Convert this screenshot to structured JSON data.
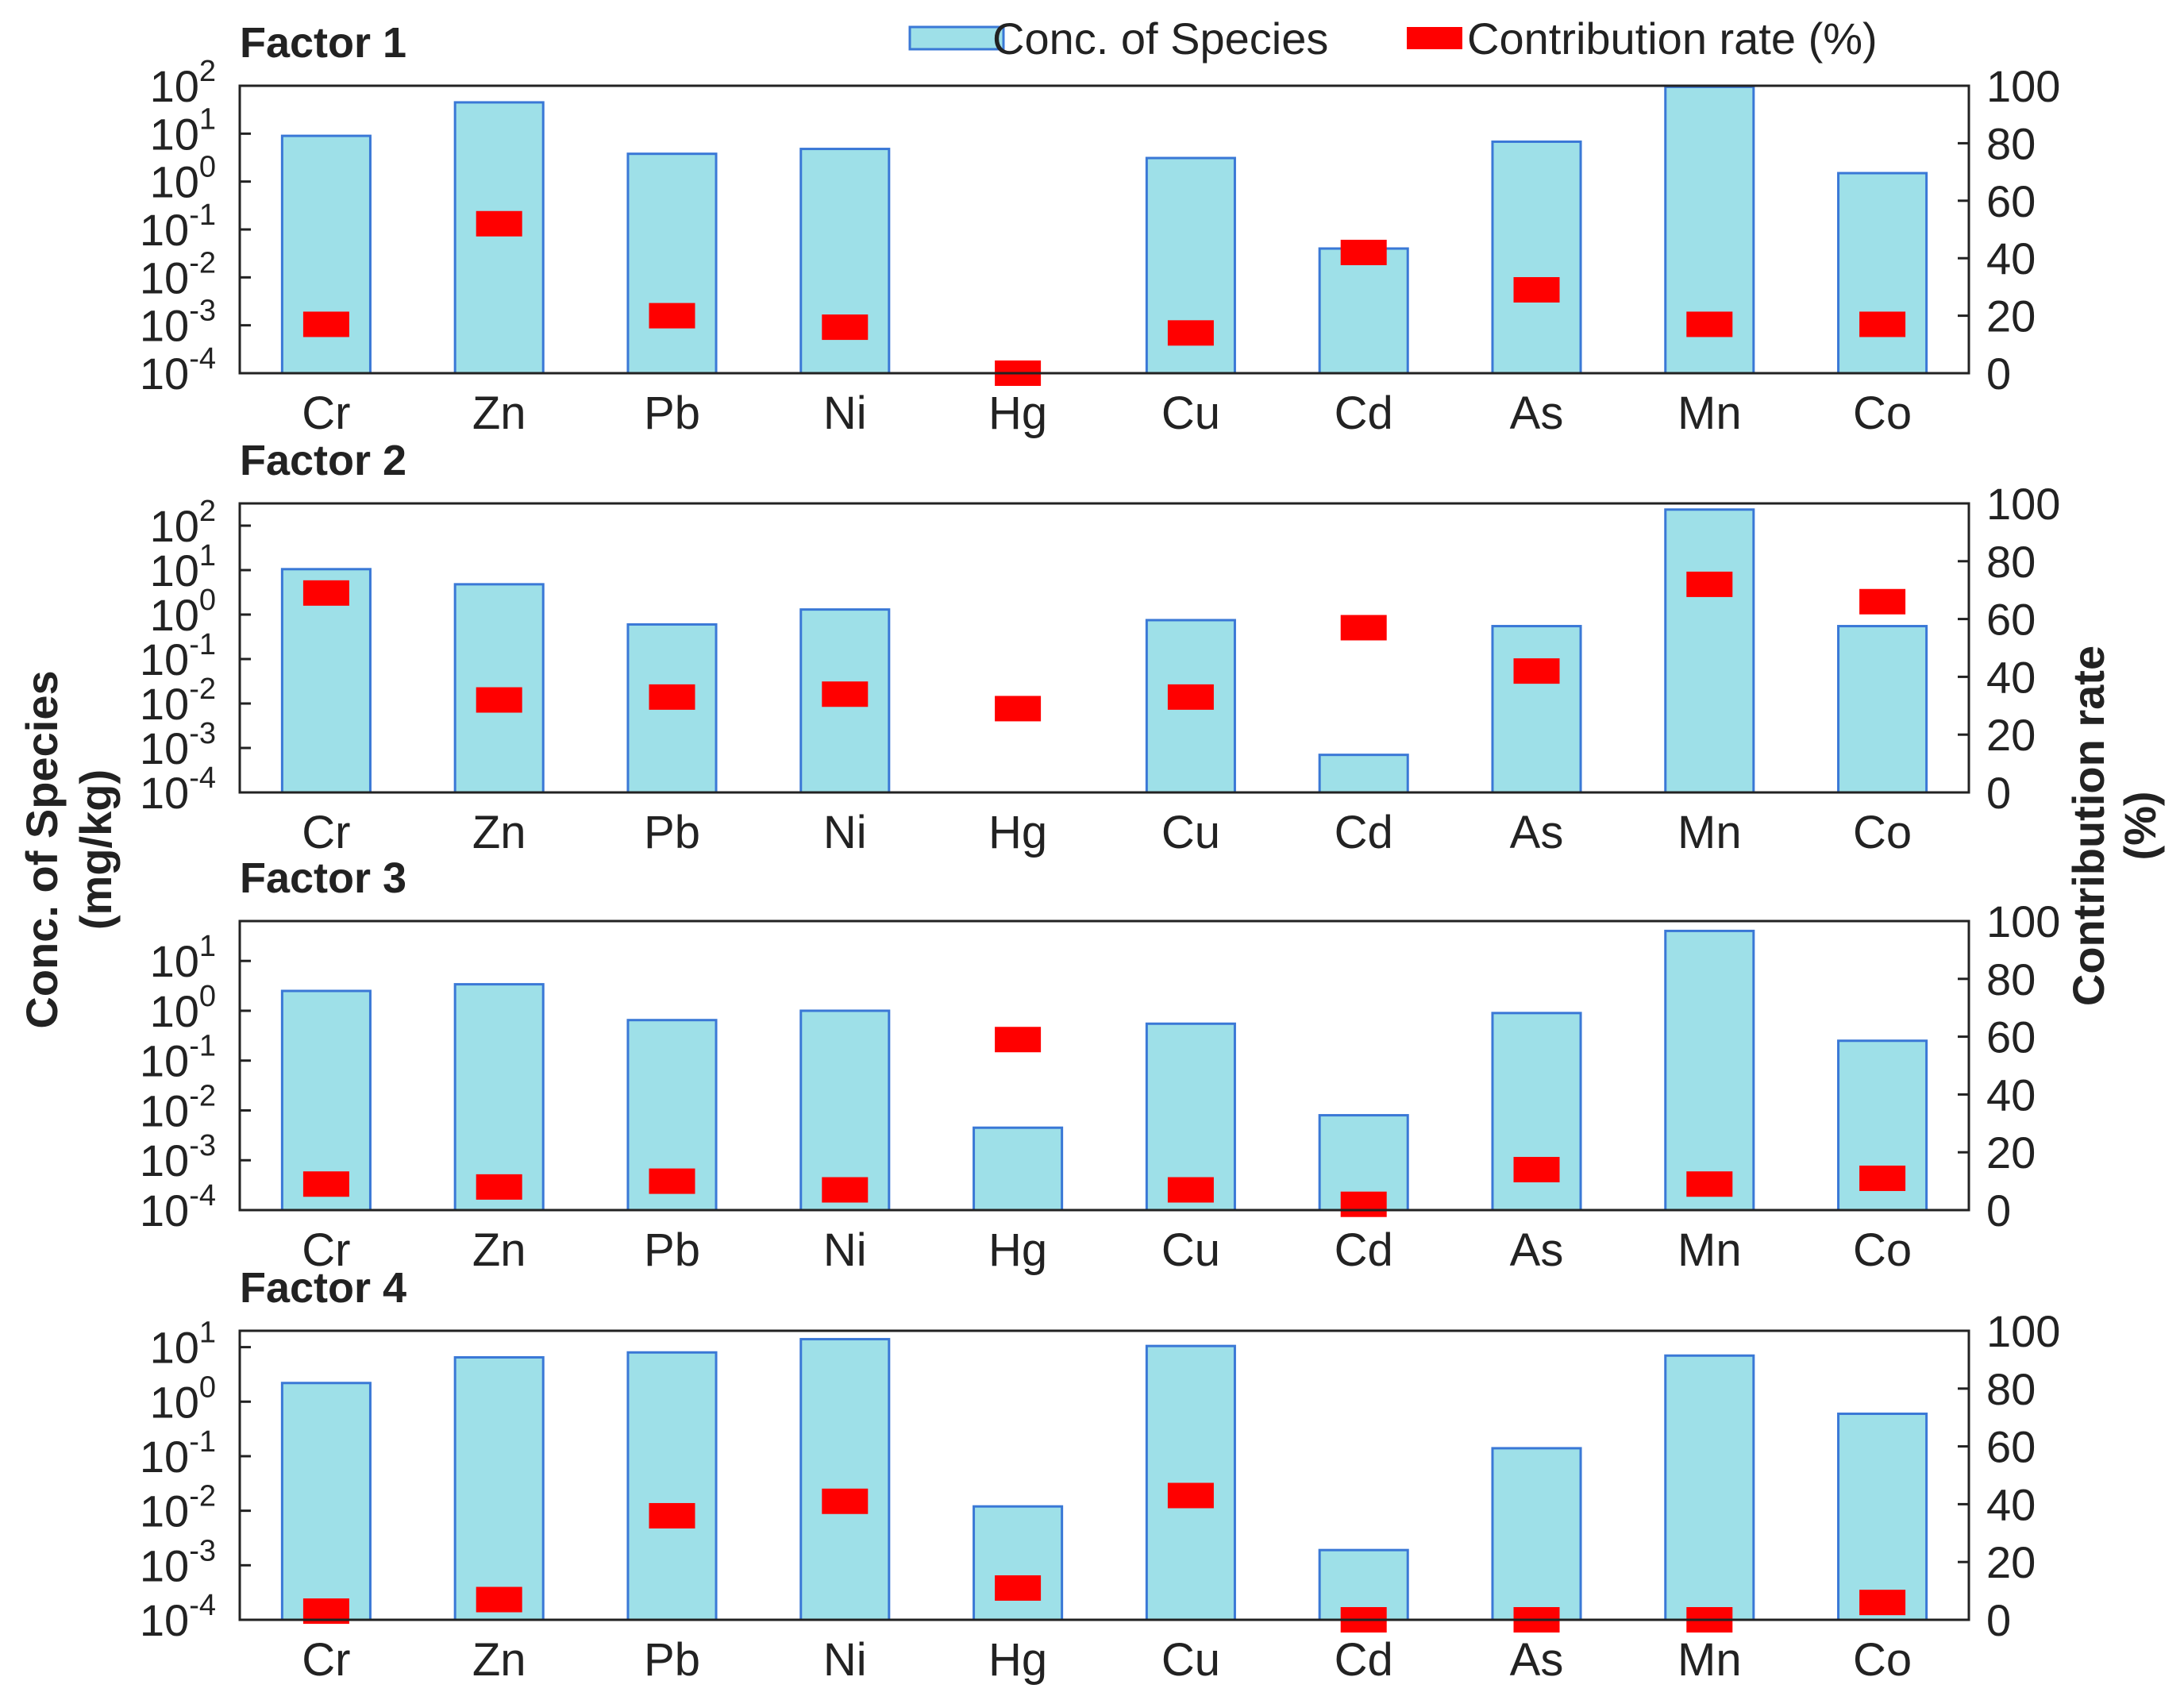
{
  "colors": {
    "bar_fill": "#9ee0e8",
    "bar_stroke": "#3a78d6",
    "marker": "#ff0000",
    "axis": "#222222"
  },
  "legend": {
    "bar_label": "Conc. of Species",
    "marker_label": "Contribution rate (%)"
  },
  "axes": {
    "left_title_line1": "Conc. of Species",
    "left_title_line2": "(mg/kg)",
    "right_title_line1": "Contribution rate",
    "right_title_line2": "(%)"
  },
  "chart_data": {
    "type": "bar",
    "categories": [
      "Cr",
      "Zn",
      "Pb",
      "Ni",
      "Hg",
      "Cu",
      "Cd",
      "As",
      "Mn",
      "Co"
    ],
    "y_scale": "log",
    "y2_range": [
      0,
      100
    ],
    "y2_ticks": [
      "0",
      "20",
      "40",
      "60",
      "80",
      "100"
    ],
    "panels": [
      {
        "title": "Factor 1",
        "ylim_exp": [
          -4,
          2
        ],
        "y_ticks": [
          {
            "base": "10",
            "exp": "-4"
          },
          {
            "base": "10",
            "exp": "-3"
          },
          {
            "base": "10",
            "exp": "-2"
          },
          {
            "base": "10",
            "exp": "-1"
          },
          {
            "base": "10",
            "exp": "0"
          },
          {
            "base": "10",
            "exp": "1"
          },
          {
            "base": "10",
            "exp": "2"
          }
        ],
        "conc": [
          9,
          45,
          3.8,
          4.8,
          null,
          3.1,
          0.04,
          6.8,
          95,
          1.5
        ],
        "contribution": [
          17,
          52,
          20,
          16,
          0,
          14,
          42,
          29,
          17,
          17
        ]
      },
      {
        "title": "Factor 2",
        "ylim_exp": [
          -4,
          2.5
        ],
        "y_ticks": [
          {
            "base": "10",
            "exp": "-4"
          },
          {
            "base": "10",
            "exp": "-3"
          },
          {
            "base": "10",
            "exp": "-2"
          },
          {
            "base": "10",
            "exp": "-1"
          },
          {
            "base": "10",
            "exp": "0"
          },
          {
            "base": "10",
            "exp": "1"
          },
          {
            "base": "10",
            "exp": "2"
          }
        ],
        "conc": [
          10.5,
          4.8,
          0.6,
          1.3,
          null,
          0.75,
          0.0007,
          0.55,
          230,
          0.55
        ],
        "contribution": [
          69,
          32,
          33,
          34,
          29,
          33,
          57,
          42,
          72,
          66
        ]
      },
      {
        "title": "Factor 3",
        "ylim_exp": [
          -4,
          1.8
        ],
        "y_ticks": [
          {
            "base": "10",
            "exp": "-4"
          },
          {
            "base": "10",
            "exp": "-3"
          },
          {
            "base": "10",
            "exp": "-2"
          },
          {
            "base": "10",
            "exp": "-1"
          },
          {
            "base": "10",
            "exp": "0"
          },
          {
            "base": "10",
            "exp": "1"
          }
        ],
        "conc": [
          2.5,
          3.4,
          0.65,
          1.0,
          0.0045,
          0.55,
          0.008,
          0.9,
          40,
          0.25
        ],
        "contribution": [
          9,
          8,
          10,
          7,
          59,
          7,
          2,
          14,
          9,
          11
        ]
      },
      {
        "title": "Factor 4",
        "ylim_exp": [
          -4,
          1.3
        ],
        "y_ticks": [
          {
            "base": "10",
            "exp": "-4"
          },
          {
            "base": "10",
            "exp": "-3"
          },
          {
            "base": "10",
            "exp": "-2"
          },
          {
            "base": "10",
            "exp": "-1"
          },
          {
            "base": "10",
            "exp": "0"
          },
          {
            "base": "10",
            "exp": "1"
          }
        ],
        "conc": [
          2.2,
          6.5,
          8,
          14,
          0.012,
          10.5,
          0.0019,
          0.14,
          7,
          0.6
        ],
        "contribution": [
          3,
          7,
          36,
          41,
          11,
          43,
          0,
          0,
          0,
          6
        ]
      }
    ]
  }
}
